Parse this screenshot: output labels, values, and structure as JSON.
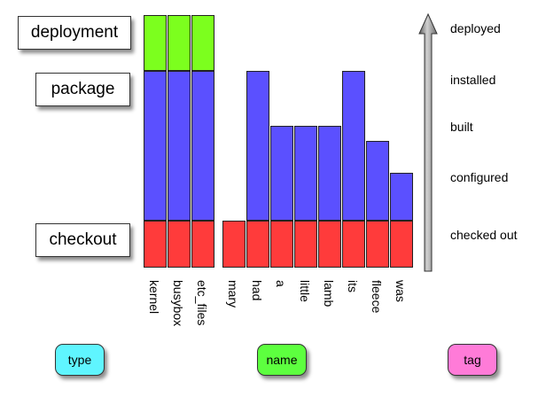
{
  "stages": {
    "deployment": "deployment",
    "package": "package",
    "checkout": "checkout"
  },
  "levels": [
    "deployed",
    "installed",
    "built",
    "configured",
    "checked out"
  ],
  "colors": {
    "checkout": "#ff3b3b",
    "package": "#5b50ff",
    "deployment": "#7cff1e",
    "type": "#5ff5ff",
    "name": "#5dff3f",
    "tag": "#ff7bd8"
  },
  "columns": [
    {
      "name": "kernel",
      "group": "type",
      "reached": "deployed"
    },
    {
      "name": "busybox",
      "group": "type",
      "reached": "deployed"
    },
    {
      "name": "etc_files",
      "group": "type",
      "reached": "deployed"
    },
    {
      "name": "mary",
      "group": "name",
      "reached": "checked out"
    },
    {
      "name": "had",
      "group": "name",
      "reached": "installed"
    },
    {
      "name": "a",
      "group": "name",
      "reached": "built"
    },
    {
      "name": "little",
      "group": "name",
      "reached": "built"
    },
    {
      "name": "lamb",
      "group": "name",
      "reached": "built"
    },
    {
      "name": "its",
      "group": "name",
      "reached": "installed"
    },
    {
      "name": "fleece",
      "group": "name",
      "reached": "between built and configured"
    },
    {
      "name": "was",
      "group": "name",
      "reached": "configured"
    }
  ],
  "legend": {
    "type": "type",
    "name": "name",
    "tag": "tag"
  }
}
